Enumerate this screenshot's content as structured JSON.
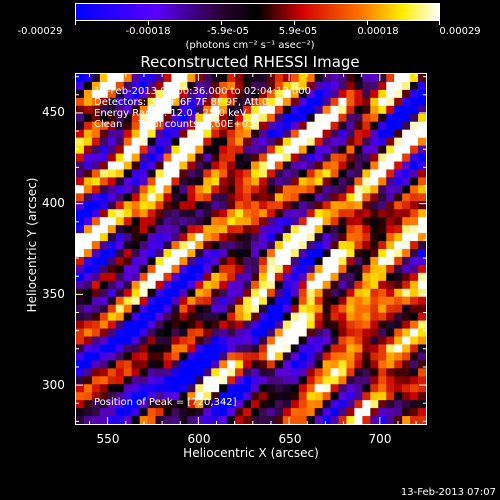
{
  "colorbar": {
    "tick_labels": [
      "-0.00029",
      "-0.00018",
      "-5.9e-05",
      "5.9e-05",
      "0.00018",
      "0.00029"
    ],
    "units": "(photons cm⁻² s⁻¹ asec⁻²)",
    "colors": [
      "#0000ff",
      "#5a00ff",
      "#2a002a",
      "#000000",
      "#ff0000",
      "#ff8000",
      "#ffff00",
      "#ffffff"
    ]
  },
  "chart_data": {
    "type": "heatmap",
    "title": "Reconstructed RHESSI Image",
    "xlabel": "Heliocentric X (arcsec)",
    "ylabel": "Heliocentric Y (arcsec)",
    "xlim": [
      532,
      726
    ],
    "ylim": [
      278,
      472
    ],
    "x_ticks": [
      550,
      600,
      650,
      700
    ],
    "y_ticks": [
      300,
      350,
      400,
      450
    ],
    "peak": [
      720,
      342
    ],
    "annotations": [
      "13-Feb-2013 02:00:36.000 to 02:04:12.000",
      "Detectors: 3F 5F 6F 7F 8F 9F, Att 0",
      "Energy Range: 12.0 - 25.0 keV",
      "Clean     Total counts: 3.60E+03",
      "Position of Peak = [720,342]"
    ]
  },
  "footer": {
    "timestamp": "13-Feb-2013 07:07"
  }
}
